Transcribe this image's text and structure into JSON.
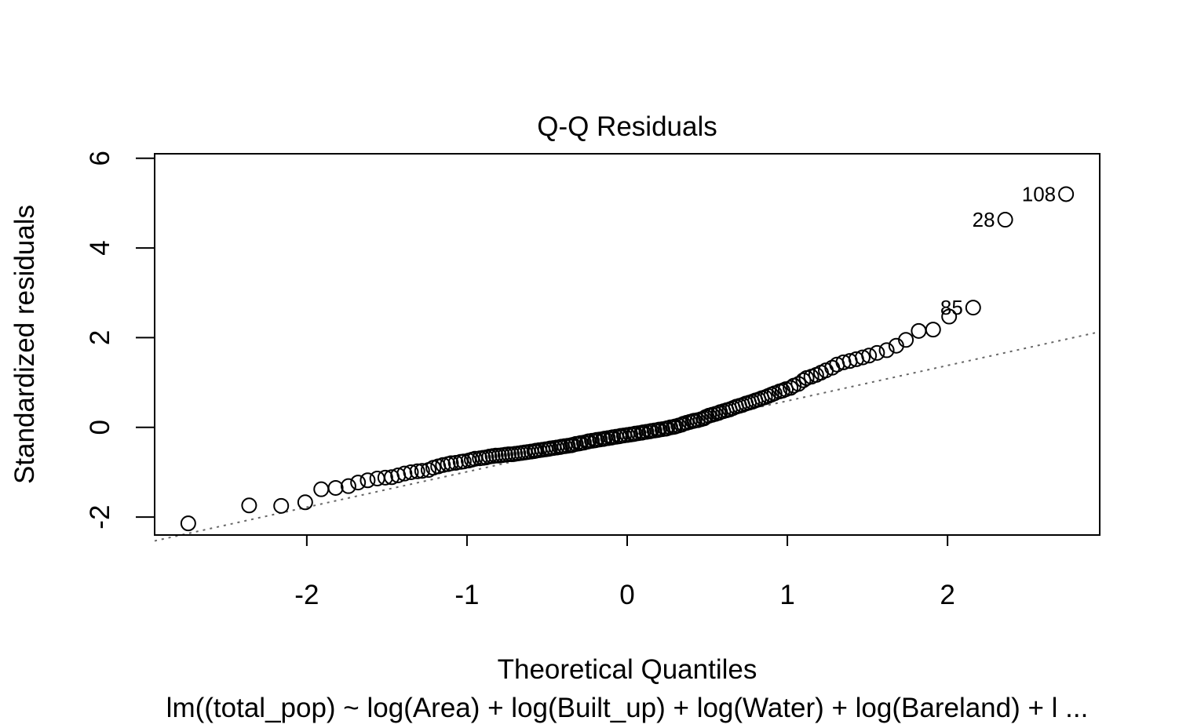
{
  "chart_data": {
    "type": "scatter",
    "title": "Q-Q Residuals",
    "xlabel": "Theoretical Quantiles",
    "ylabel": "Standardized residuals",
    "subtitle": "lm((total_pop) ~ log(Area) + log(Built_up) + log(Water) + log(Bareland) + l ...",
    "xlim": [
      -2.95,
      2.95
    ],
    "ylim": [
      -2.4,
      6.1
    ],
    "x_ticks": [
      -2,
      -1,
      0,
      1,
      2
    ],
    "x_tick_labels": [
      "-2",
      "-1",
      "0",
      "1",
      "2"
    ],
    "y_ticks": [
      -2,
      0,
      2,
      4,
      6
    ],
    "y_tick_labels": [
      "-2",
      "0",
      "2",
      "4",
      "6"
    ],
    "grid": false,
    "reference_line": {
      "intercept": -0.2,
      "slope": 0.79,
      "style": "dotted"
    },
    "points": {
      "x": [
        -2.74,
        -2.36,
        -2.16,
        -2.01,
        -1.91,
        -1.82,
        -1.74,
        -1.68,
        -1.62,
        -1.56,
        -1.51,
        -1.47,
        -1.43,
        -1.39,
        -1.35,
        -1.31,
        -1.28,
        -1.24,
        -1.21,
        -1.18,
        -1.15,
        -1.12,
        -1.1,
        -1.07,
        -1.04,
        -1.02,
        -0.99,
        -0.97,
        -0.95,
        -0.92,
        -0.9,
        -0.88,
        -0.86,
        -0.84,
        -0.82,
        -0.8,
        -0.78,
        -0.76,
        -0.74,
        -0.72,
        -0.7,
        -0.68,
        -0.66,
        -0.64,
        -0.62,
        -0.6,
        -0.58,
        -0.57,
        -0.55,
        -0.53,
        -0.51,
        -0.49,
        -0.48,
        -0.46,
        -0.44,
        -0.42,
        -0.41,
        -0.39,
        -0.37,
        -0.35,
        -0.34,
        -0.32,
        -0.3,
        -0.29,
        -0.27,
        -0.25,
        -0.24,
        -0.22,
        -0.2,
        -0.19,
        -0.17,
        -0.15,
        -0.14,
        -0.12,
        -0.1,
        -0.09,
        -0.07,
        -0.05,
        -0.04,
        -0.02,
        0.0,
        0.02,
        0.04,
        0.05,
        0.07,
        0.09,
        0.1,
        0.12,
        0.14,
        0.15,
        0.17,
        0.19,
        0.2,
        0.22,
        0.24,
        0.25,
        0.27,
        0.29,
        0.3,
        0.32,
        0.34,
        0.35,
        0.37,
        0.39,
        0.41,
        0.42,
        0.44,
        0.46,
        0.48,
        0.49,
        0.51,
        0.53,
        0.55,
        0.57,
        0.58,
        0.6,
        0.62,
        0.64,
        0.66,
        0.68,
        0.7,
        0.72,
        0.74,
        0.76,
        0.78,
        0.8,
        0.82,
        0.84,
        0.86,
        0.88,
        0.9,
        0.92,
        0.95,
        0.97,
        0.99,
        1.02,
        1.04,
        1.07,
        1.1,
        1.12,
        1.15,
        1.18,
        1.21,
        1.24,
        1.28,
        1.31,
        1.35,
        1.39,
        1.43,
        1.47,
        1.51,
        1.56,
        1.62,
        1.68,
        1.74,
        1.82,
        1.91,
        2.01,
        2.16,
        2.36,
        2.74
      ],
      "y": [
        -2.14,
        -1.74,
        -1.75,
        -1.67,
        -1.38,
        -1.35,
        -1.31,
        -1.23,
        -1.18,
        -1.14,
        -1.12,
        -1.11,
        -1.07,
        -1.03,
        -1.0,
        -0.98,
        -0.97,
        -0.95,
        -0.9,
        -0.87,
        -0.84,
        -0.82,
        -0.8,
        -0.79,
        -0.77,
        -0.76,
        -0.74,
        -0.72,
        -0.7,
        -0.69,
        -0.68,
        -0.67,
        -0.65,
        -0.64,
        -0.63,
        -0.63,
        -0.62,
        -0.61,
        -0.6,
        -0.6,
        -0.59,
        -0.58,
        -0.57,
        -0.56,
        -0.55,
        -0.54,
        -0.53,
        -0.52,
        -0.51,
        -0.5,
        -0.49,
        -0.48,
        -0.47,
        -0.46,
        -0.45,
        -0.44,
        -0.43,
        -0.42,
        -0.41,
        -0.4,
        -0.39,
        -0.37,
        -0.36,
        -0.35,
        -0.34,
        -0.32,
        -0.31,
        -0.3,
        -0.29,
        -0.28,
        -0.27,
        -0.26,
        -0.25,
        -0.24,
        -0.23,
        -0.22,
        -0.21,
        -0.2,
        -0.19,
        -0.18,
        -0.17,
        -0.16,
        -0.15,
        -0.14,
        -0.13,
        -0.12,
        -0.11,
        -0.1,
        -0.09,
        -0.08,
        -0.07,
        -0.06,
        -0.05,
        -0.04,
        -0.03,
        -0.02,
        0.0,
        0.01,
        0.02,
        0.04,
        0.06,
        0.08,
        0.1,
        0.12,
        0.14,
        0.15,
        0.16,
        0.18,
        0.2,
        0.23,
        0.26,
        0.28,
        0.3,
        0.32,
        0.34,
        0.36,
        0.38,
        0.4,
        0.43,
        0.46,
        0.48,
        0.5,
        0.53,
        0.55,
        0.57,
        0.6,
        0.62,
        0.65,
        0.67,
        0.7,
        0.73,
        0.76,
        0.8,
        0.82,
        0.85,
        0.88,
        0.93,
        0.97,
        1.05,
        1.1,
        1.13,
        1.17,
        1.22,
        1.27,
        1.33,
        1.4,
        1.45,
        1.48,
        1.52,
        1.56,
        1.6,
        1.66,
        1.72,
        1.82,
        1.95,
        2.15,
        2.18,
        2.47,
        2.67,
        4.63,
        5.2
      ],
      "labeled": [
        {
          "x": 2.16,
          "y": 2.67,
          "label": "85"
        },
        {
          "x": 2.36,
          "y": 4.63,
          "label": "28"
        },
        {
          "x": 2.74,
          "y": 5.2,
          "label": "108"
        }
      ]
    }
  }
}
